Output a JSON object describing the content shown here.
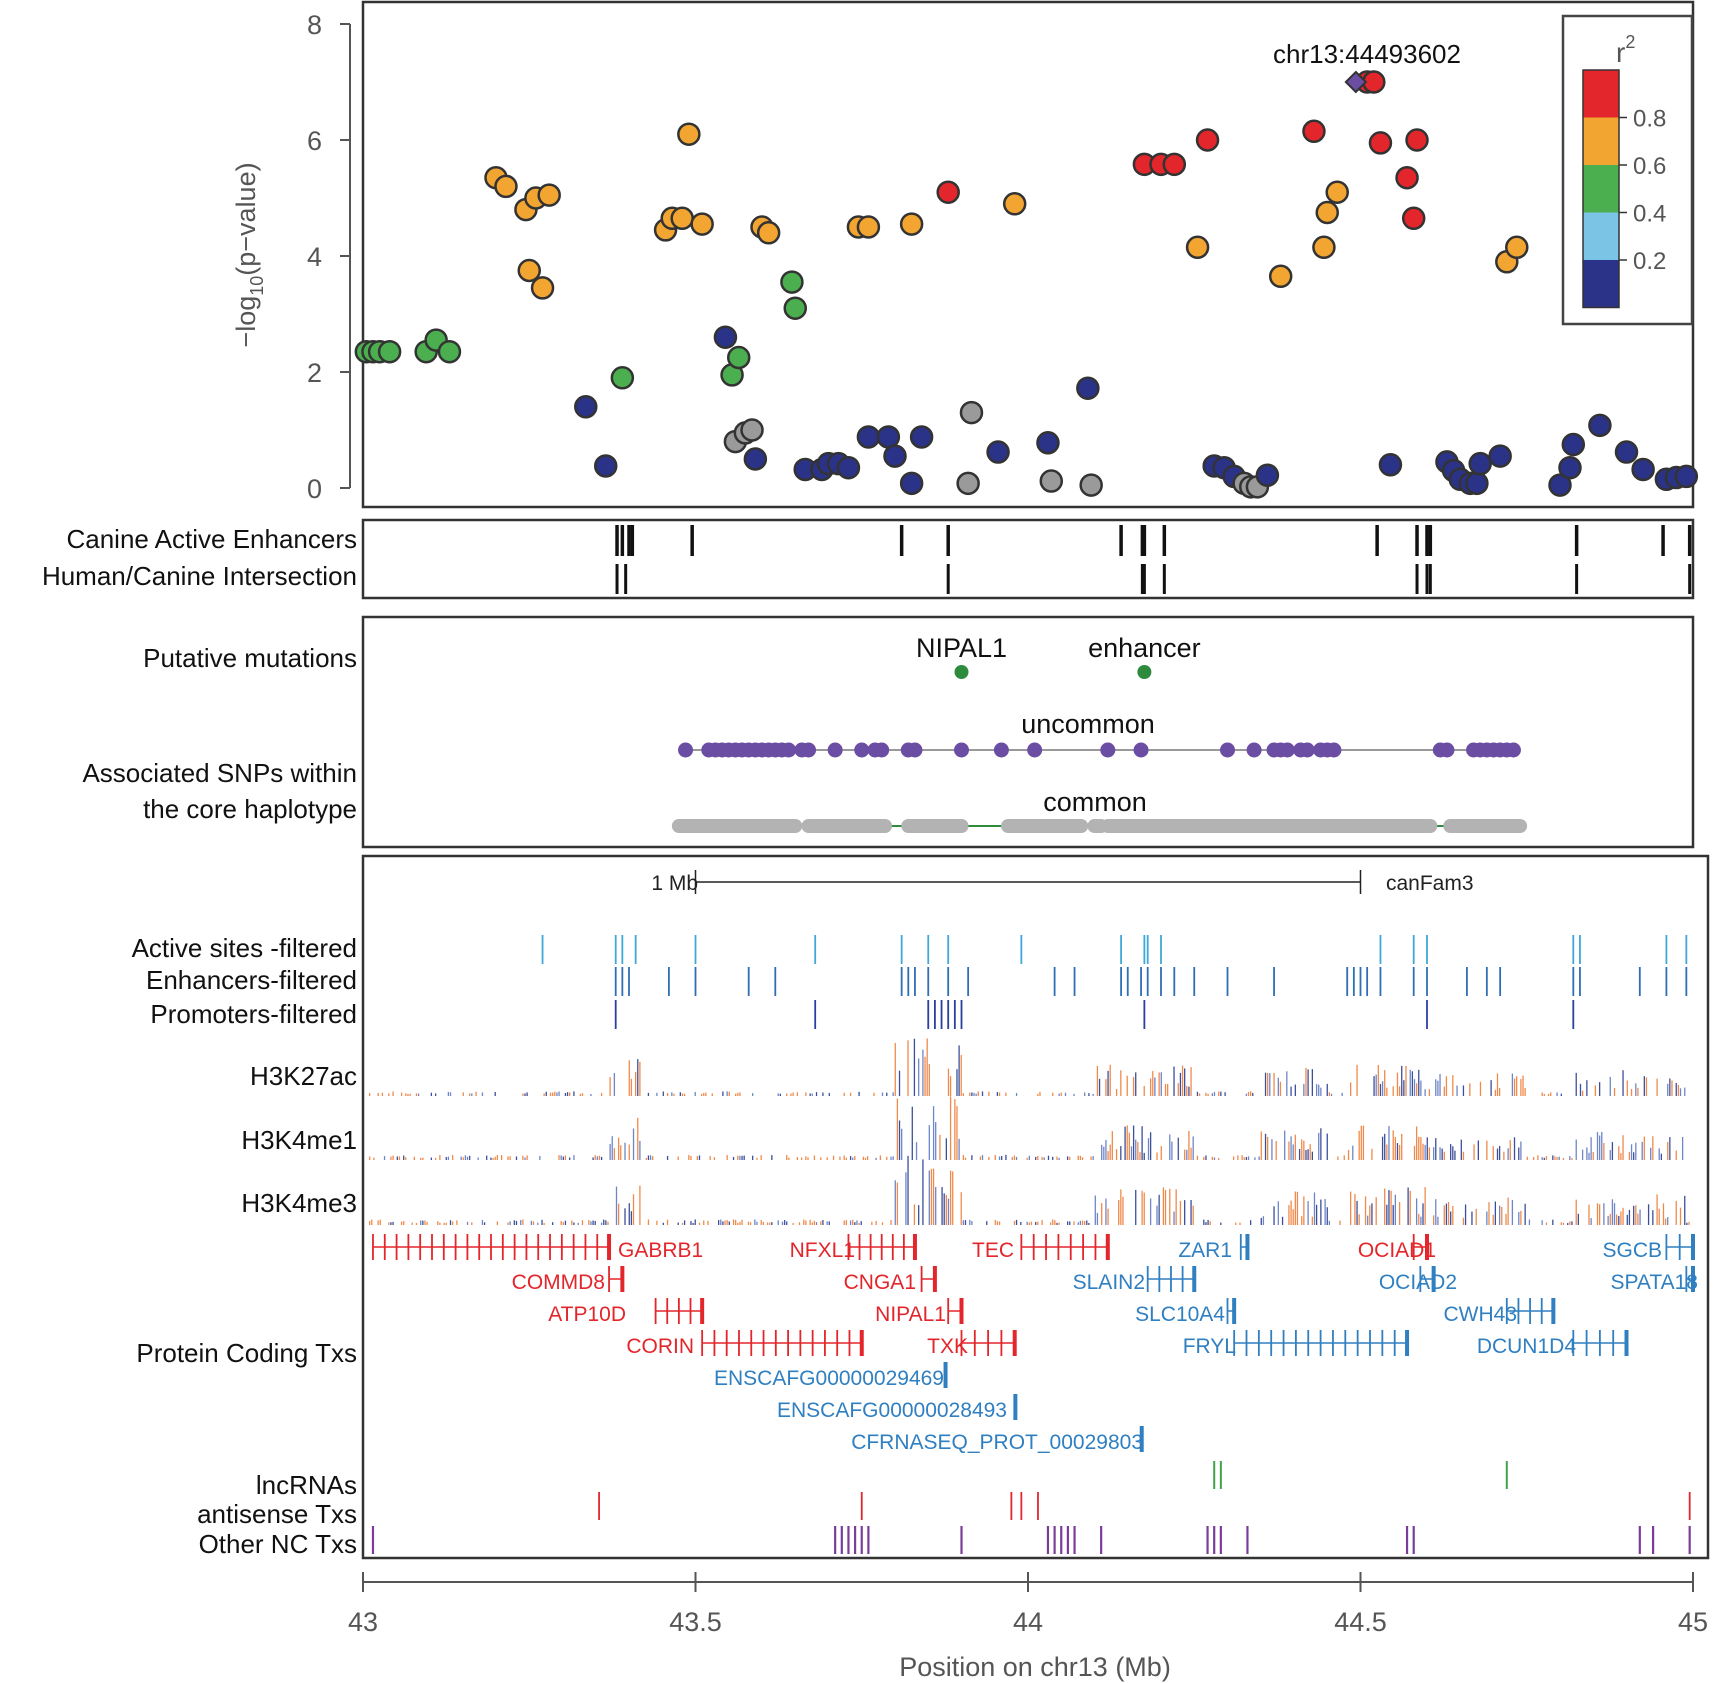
{
  "chart_data": {
    "type": "scatter",
    "ylabel_main": "−log",
    "ylabel_sub": "10",
    "ylabel_rest": "(p−value)",
    "xlabel": "Position on chr13 (Mb)",
    "xlim": [
      43,
      45
    ],
    "ylim": [
      0,
      8
    ],
    "xticks": [
      "43",
      "43.5",
      "44",
      "44.5",
      "45"
    ],
    "yticks": [
      "0",
      "2",
      "4",
      "6",
      "8"
    ],
    "lead_snp": {
      "label": "chr13:44493602",
      "x": 44.493,
      "y": 7.0
    },
    "legend": {
      "title": "r",
      "title_sup": "2",
      "labels": [
        "0.8",
        "0.6",
        "0.4",
        "0.2"
      ],
      "colors": [
        "#e3262b",
        "#f3a532",
        "#4caf4f",
        "#7bc4e6",
        "#2b3388"
      ]
    },
    "color_map": {
      "red": "#e3262b",
      "orange": "#f3a532",
      "green": "#4caf4f",
      "navy": "#2b3388",
      "gray": "#9a9a9a",
      "purple": "#6b4ea3"
    },
    "points": [
      {
        "x": 43.005,
        "y": 2.35,
        "c": "green"
      },
      {
        "x": 43.015,
        "y": 2.35,
        "c": "green"
      },
      {
        "x": 43.025,
        "y": 2.35,
        "c": "green"
      },
      {
        "x": 43.04,
        "y": 2.35,
        "c": "green"
      },
      {
        "x": 43.095,
        "y": 2.35,
        "c": "green"
      },
      {
        "x": 43.11,
        "y": 2.55,
        "c": "green"
      },
      {
        "x": 43.13,
        "y": 2.35,
        "c": "green"
      },
      {
        "x": 43.2,
        "y": 5.35,
        "c": "orange"
      },
      {
        "x": 43.215,
        "y": 5.2,
        "c": "orange"
      },
      {
        "x": 43.245,
        "y": 4.8,
        "c": "orange"
      },
      {
        "x": 43.26,
        "y": 5.0,
        "c": "orange"
      },
      {
        "x": 43.28,
        "y": 5.05,
        "c": "orange"
      },
      {
        "x": 43.25,
        "y": 3.75,
        "c": "orange"
      },
      {
        "x": 43.27,
        "y": 3.45,
        "c": "orange"
      },
      {
        "x": 43.335,
        "y": 1.4,
        "c": "navy"
      },
      {
        "x": 43.365,
        "y": 0.38,
        "c": "navy"
      },
      {
        "x": 43.39,
        "y": 1.9,
        "c": "green"
      },
      {
        "x": 43.455,
        "y": 4.45,
        "c": "orange"
      },
      {
        "x": 43.465,
        "y": 4.65,
        "c": "orange"
      },
      {
        "x": 43.48,
        "y": 4.65,
        "c": "orange"
      },
      {
        "x": 43.49,
        "y": 6.1,
        "c": "orange"
      },
      {
        "x": 43.51,
        "y": 4.55,
        "c": "orange"
      },
      {
        "x": 43.545,
        "y": 2.6,
        "c": "navy"
      },
      {
        "x": 43.555,
        "y": 1.95,
        "c": "green"
      },
      {
        "x": 43.565,
        "y": 2.25,
        "c": "green"
      },
      {
        "x": 43.56,
        "y": 0.8,
        "c": "gray"
      },
      {
        "x": 43.575,
        "y": 0.95,
        "c": "gray"
      },
      {
        "x": 43.585,
        "y": 1.0,
        "c": "gray"
      },
      {
        "x": 43.59,
        "y": 0.5,
        "c": "navy"
      },
      {
        "x": 43.6,
        "y": 4.5,
        "c": "orange"
      },
      {
        "x": 43.61,
        "y": 4.4,
        "c": "orange"
      },
      {
        "x": 43.645,
        "y": 3.55,
        "c": "green"
      },
      {
        "x": 43.65,
        "y": 3.1,
        "c": "green"
      },
      {
        "x": 43.665,
        "y": 0.32,
        "c": "navy"
      },
      {
        "x": 43.69,
        "y": 0.32,
        "c": "navy"
      },
      {
        "x": 43.7,
        "y": 0.42,
        "c": "navy"
      },
      {
        "x": 43.715,
        "y": 0.42,
        "c": "navy"
      },
      {
        "x": 43.73,
        "y": 0.35,
        "c": "navy"
      },
      {
        "x": 43.745,
        "y": 4.5,
        "c": "orange"
      },
      {
        "x": 43.76,
        "y": 4.5,
        "c": "orange"
      },
      {
        "x": 43.76,
        "y": 0.88,
        "c": "navy"
      },
      {
        "x": 43.79,
        "y": 0.88,
        "c": "navy"
      },
      {
        "x": 43.8,
        "y": 0.55,
        "c": "navy"
      },
      {
        "x": 43.825,
        "y": 4.55,
        "c": "orange"
      },
      {
        "x": 43.825,
        "y": 0.08,
        "c": "navy"
      },
      {
        "x": 43.84,
        "y": 0.88,
        "c": "navy"
      },
      {
        "x": 43.88,
        "y": 5.1,
        "c": "red"
      },
      {
        "x": 43.91,
        "y": 0.08,
        "c": "gray"
      },
      {
        "x": 43.915,
        "y": 1.3,
        "c": "gray"
      },
      {
        "x": 43.955,
        "y": 0.62,
        "c": "navy"
      },
      {
        "x": 43.98,
        "y": 4.9,
        "c": "orange"
      },
      {
        "x": 44.03,
        "y": 0.78,
        "c": "navy"
      },
      {
        "x": 44.035,
        "y": 0.12,
        "c": "gray"
      },
      {
        "x": 44.09,
        "y": 1.72,
        "c": "navy"
      },
      {
        "x": 44.095,
        "y": 0.05,
        "c": "gray"
      },
      {
        "x": 44.175,
        "y": 5.58,
        "c": "red"
      },
      {
        "x": 44.2,
        "y": 5.58,
        "c": "red"
      },
      {
        "x": 44.22,
        "y": 5.58,
        "c": "red"
      },
      {
        "x": 44.255,
        "y": 4.15,
        "c": "orange"
      },
      {
        "x": 44.27,
        "y": 6.0,
        "c": "red"
      },
      {
        "x": 44.28,
        "y": 0.38,
        "c": "navy"
      },
      {
        "x": 44.295,
        "y": 0.35,
        "c": "navy"
      },
      {
        "x": 44.31,
        "y": 0.2,
        "c": "navy"
      },
      {
        "x": 44.325,
        "y": 0.08,
        "c": "gray"
      },
      {
        "x": 44.335,
        "y": 0.02,
        "c": "gray"
      },
      {
        "x": 44.345,
        "y": 0.02,
        "c": "gray"
      },
      {
        "x": 44.36,
        "y": 0.22,
        "c": "navy"
      },
      {
        "x": 44.38,
        "y": 3.65,
        "c": "orange"
      },
      {
        "x": 44.43,
        "y": 6.15,
        "c": "red"
      },
      {
        "x": 44.445,
        "y": 4.15,
        "c": "orange"
      },
      {
        "x": 44.45,
        "y": 4.75,
        "c": "orange"
      },
      {
        "x": 44.465,
        "y": 5.1,
        "c": "orange"
      },
      {
        "x": 44.51,
        "y": 7.0,
        "c": "red"
      },
      {
        "x": 44.52,
        "y": 7.0,
        "c": "red"
      },
      {
        "x": 44.53,
        "y": 5.95,
        "c": "red"
      },
      {
        "x": 44.545,
        "y": 0.4,
        "c": "navy"
      },
      {
        "x": 44.57,
        "y": 5.35,
        "c": "red"
      },
      {
        "x": 44.58,
        "y": 4.65,
        "c": "red"
      },
      {
        "x": 44.585,
        "y": 6.0,
        "c": "red"
      },
      {
        "x": 44.63,
        "y": 0.45,
        "c": "navy"
      },
      {
        "x": 44.64,
        "y": 0.3,
        "c": "navy"
      },
      {
        "x": 44.65,
        "y": 0.15,
        "c": "navy"
      },
      {
        "x": 44.665,
        "y": 0.08,
        "c": "navy"
      },
      {
        "x": 44.675,
        "y": 0.08,
        "c": "navy"
      },
      {
        "x": 44.68,
        "y": 0.42,
        "c": "navy"
      },
      {
        "x": 44.71,
        "y": 0.55,
        "c": "navy"
      },
      {
        "x": 44.72,
        "y": 3.9,
        "c": "orange"
      },
      {
        "x": 44.735,
        "y": 4.15,
        "c": "orange"
      },
      {
        "x": 44.8,
        "y": 0.05,
        "c": "navy"
      },
      {
        "x": 44.815,
        "y": 0.35,
        "c": "navy"
      },
      {
        "x": 44.82,
        "y": 0.75,
        "c": "navy"
      },
      {
        "x": 44.86,
        "y": 1.08,
        "c": "navy"
      },
      {
        "x": 44.9,
        "y": 0.62,
        "c": "navy"
      },
      {
        "x": 44.925,
        "y": 0.32,
        "c": "navy"
      },
      {
        "x": 44.96,
        "y": 0.15,
        "c": "navy"
      },
      {
        "x": 44.975,
        "y": 0.18,
        "c": "navy"
      },
      {
        "x": 44.99,
        "y": 0.2,
        "c": "navy"
      }
    ],
    "enhancer_track": {
      "labels": [
        "Canine Active Enhancers",
        "Human/Canine Intersection"
      ],
      "active": [
        43.382,
        43.39,
        43.4,
        43.405,
        43.495,
        43.81,
        43.88,
        44.14,
        44.172,
        44.175,
        44.205,
        44.525,
        44.585,
        44.6,
        44.605,
        44.825,
        44.955,
        44.995
      ],
      "intersection": [
        43.382,
        43.395,
        43.88,
        44.172,
        44.175,
        44.205,
        44.585,
        44.6,
        44.605,
        44.825,
        44.995
      ]
    },
    "mutations": {
      "label": "Putative mutations",
      "items": [
        {
          "label": "NIPAL1",
          "x": 43.9
        },
        {
          "label": "enhancer",
          "x": 44.175
        }
      ]
    },
    "haplotype": {
      "label_line1": "Associated SNPs within",
      "label_line2": "the core haplotype",
      "uncommon_label": "uncommon",
      "common_label": "common",
      "range": [
        43.48,
        44.74
      ],
      "uncommon_snps": [
        43.485,
        43.52,
        43.53,
        43.54,
        43.55,
        43.56,
        43.57,
        43.58,
        43.59,
        43.6,
        43.61,
        43.62,
        43.63,
        43.64,
        43.66,
        43.67,
        43.71,
        43.75,
        43.77,
        43.78,
        43.82,
        43.83,
        43.9,
        43.96,
        44.01,
        44.12,
        44.17,
        44.3,
        44.34,
        44.37,
        44.38,
        44.39,
        44.41,
        44.42,
        44.44,
        44.45,
        44.46,
        44.62,
        44.63,
        44.67,
        44.68,
        44.69,
        44.7,
        44.71,
        44.72,
        44.73
      ],
      "common_segments": [
        [
          43.475,
          43.65
        ],
        [
          43.67,
          43.785
        ],
        [
          43.82,
          43.9
        ],
        [
          43.97,
          44.08
        ],
        [
          44.1,
          44.11
        ],
        [
          44.12,
          44.605
        ],
        [
          44.635,
          44.74
        ]
      ]
    },
    "scale_bar": {
      "label": "1 Mb",
      "assembly": "canFam3",
      "from": 43.5,
      "to": 44.5
    },
    "filtered_tracks": {
      "labels": [
        "Active sites -filtered",
        "Enhancers-filtered",
        "Promoters-filtered"
      ],
      "active": [
        43.27,
        43.38,
        43.39,
        43.41,
        43.5,
        43.68,
        43.81,
        43.85,
        43.88,
        43.99,
        44.14,
        44.175,
        44.18,
        44.2,
        44.53,
        44.58,
        44.6,
        44.82,
        44.83,
        44.96,
        44.99
      ],
      "enhancers": [
        43.38,
        43.39,
        43.4,
        43.46,
        43.5,
        43.58,
        43.62,
        43.81,
        43.82,
        43.83,
        43.85,
        43.88,
        43.91,
        44.04,
        44.07,
        44.14,
        44.15,
        44.17,
        44.18,
        44.2,
        44.22,
        44.25,
        44.3,
        44.37,
        44.48,
        44.49,
        44.5,
        44.51,
        44.53,
        44.58,
        44.6,
        44.66,
        44.69,
        44.71,
        44.82,
        44.83,
        44.92,
        44.96,
        44.99
      ],
      "promoters": [
        43.38,
        43.68,
        43.85,
        43.86,
        43.87,
        43.88,
        43.89,
        43.9,
        44.175,
        44.6,
        44.82
      ]
    },
    "histone_tracks": {
      "labels": [
        "H3K27ac",
        "H3K4me1",
        "H3K4me3"
      ]
    },
    "genes": {
      "track_label": "Protein Coding Txs",
      "red": [
        "GABRB1",
        "NFXL1",
        "TEC",
        "OCIAD1",
        "COMMD8",
        "CNGA1",
        "ATP10D",
        "NIPAL1",
        "CORIN",
        "TXK"
      ],
      "blue": [
        "ZAR1",
        "SGCB",
        "SLAIN2",
        "OCIAD2",
        "SPATA18",
        "SLC10A4",
        "CWH43",
        "FRYL",
        "DCUN1D4",
        "ENSCAFG00000029469",
        "ENSCAFG00000028493",
        "CFRNASEQ_PROT_00029803"
      ],
      "red_color": "#e3262b",
      "blue_color": "#2f7fc1"
    },
    "nc_tracks": {
      "labels": [
        "lncRNAs",
        "antisense Txs",
        "Other NC Txs"
      ],
      "lnc": [
        44.28,
        44.29,
        44.72
      ],
      "antisense": [
        43.355,
        43.75,
        43.975,
        43.99,
        44.015,
        44.995
      ],
      "other": [
        43.015,
        43.71,
        43.72,
        43.73,
        43.74,
        43.75,
        43.76,
        43.9,
        44.03,
        44.04,
        44.05,
        44.06,
        44.07,
        44.11,
        44.27,
        44.28,
        44.29,
        44.33,
        44.57,
        44.58,
        44.92,
        44.94,
        44.995
      ]
    }
  }
}
